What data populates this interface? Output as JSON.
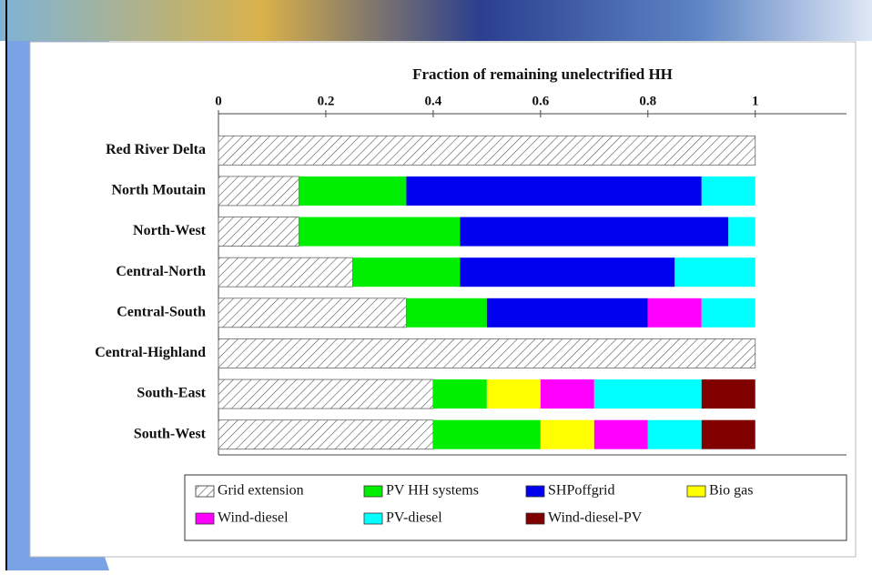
{
  "chart_data": {
    "type": "stacked-barh",
    "title": "Fraction of remaining unelectrified HH",
    "categories": [
      "Red River Delta",
      "North Moutain",
      "North-West",
      "Central-North",
      "Central-South",
      "Central-Highland",
      "South-East",
      "South-West"
    ],
    "series": [
      {
        "name": "Grid extension",
        "color": "#ffffff",
        "hatch": true,
        "values": [
          1,
          0.15,
          0.15,
          0.25,
          0.35,
          1,
          0.4,
          0.4
        ]
      },
      {
        "name": "PV HH systems",
        "color": "#00ee00",
        "values": [
          0,
          0.2,
          0.3,
          0.2,
          0.15,
          0,
          0.1,
          0.2
        ]
      },
      {
        "name": "SHPoffgrid",
        "color": "#0000ee",
        "values": [
          0,
          0.55,
          0.5,
          0.4,
          0.3,
          0,
          0,
          0
        ]
      },
      {
        "name": "Bio gas",
        "color": "#ffff00",
        "values": [
          0,
          0,
          0,
          0,
          0,
          0,
          0.1,
          0.1
        ]
      },
      {
        "name": "Wind-diesel",
        "color": "#ff00ff",
        "values": [
          0,
          0,
          0,
          0,
          0.1,
          0,
          0.1,
          0.1
        ]
      },
      {
        "name": "PV-diesel",
        "color": "#00ffff",
        "values": [
          0,
          0.1,
          0.05,
          0.15,
          0.1,
          0,
          0.2,
          0.1
        ]
      },
      {
        "name": "Wind-diesel-PV",
        "color": "#800000",
        "values": [
          0,
          0,
          0,
          0,
          0,
          0,
          0.1,
          0.1
        ]
      }
    ],
    "xlim": [
      0,
      1.17
    ],
    "xticks": [
      0,
      0.2,
      0.4,
      0.6,
      0.8,
      1
    ]
  }
}
